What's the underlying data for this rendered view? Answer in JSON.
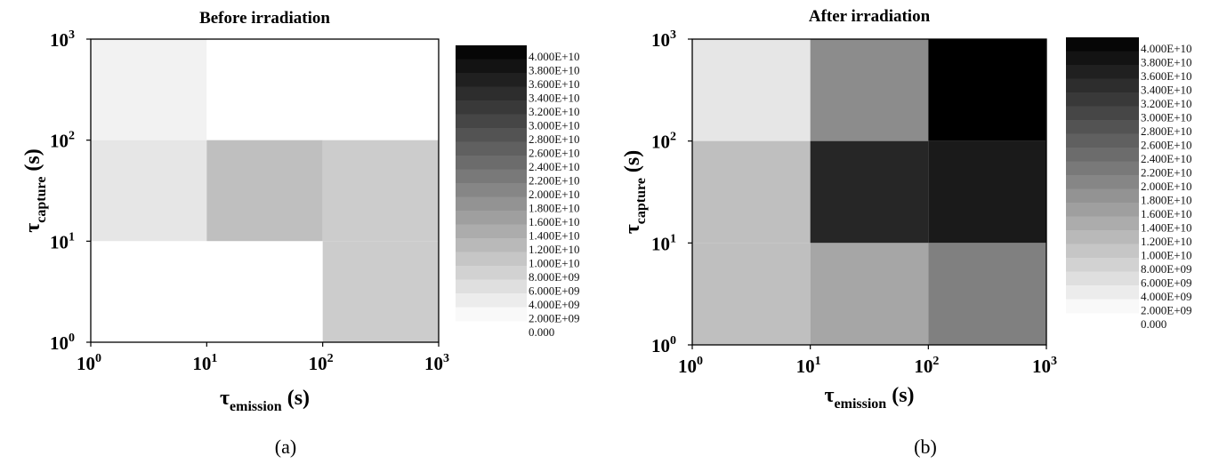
{
  "chart_data": [
    {
      "type": "heatmap",
      "title": "Before irradiation",
      "caption": "(a)",
      "xlabel": {
        "symbol": "τ",
        "subscript": "emission",
        "unit": "(s)"
      },
      "ylabel": {
        "symbol": "τ",
        "subscript": "capture",
        "unit": "(s)"
      },
      "x_scale": "log",
      "y_scale": "log",
      "xlim": [
        1,
        1000
      ],
      "ylim": [
        1,
        1000
      ],
      "x_ticks": [
        {
          "base": "10",
          "exp": "0"
        },
        {
          "base": "10",
          "exp": "1"
        },
        {
          "base": "10",
          "exp": "2"
        },
        {
          "base": "10",
          "exp": "3"
        }
      ],
      "y_ticks": [
        {
          "base": "10",
          "exp": "0"
        },
        {
          "base": "10",
          "exp": "1"
        },
        {
          "base": "10",
          "exp": "2"
        },
        {
          "base": "10",
          "exp": "3"
        }
      ],
      "cells": [
        {
          "x": [
            1,
            10
          ],
          "y": [
            100,
            1000
          ],
          "value": 2000000000
        },
        {
          "x": [
            10,
            100
          ],
          "y": [
            100,
            1000
          ],
          "value": 0
        },
        {
          "x": [
            100,
            1000
          ],
          "y": [
            100,
            1000
          ],
          "value": 0
        },
        {
          "x": [
            1,
            10
          ],
          "y": [
            10,
            100
          ],
          "value": 4000000000
        },
        {
          "x": [
            10,
            100
          ],
          "y": [
            10,
            100
          ],
          "value": 10000000000
        },
        {
          "x": [
            100,
            1000
          ],
          "y": [
            10,
            100
          ],
          "value": 8000000000
        },
        {
          "x": [
            1,
            10
          ],
          "y": [
            1,
            10
          ],
          "value": 0
        },
        {
          "x": [
            10,
            100
          ],
          "y": [
            1,
            10
          ],
          "value": 0
        },
        {
          "x": [
            100,
            1000
          ],
          "y": [
            1,
            10
          ],
          "value": 8000000000
        }
      ],
      "colorbar": {
        "labels": [
          "4.000E+10",
          "3.800E+10",
          "3.600E+10",
          "3.400E+10",
          "3.200E+10",
          "3.000E+10",
          "2.800E+10",
          "2.600E+10",
          "2.400E+10",
          "2.200E+10",
          "2.000E+10",
          "1.800E+10",
          "1.600E+10",
          "1.400E+10",
          "1.200E+10",
          "1.000E+10",
          "8.000E+09",
          "6.000E+09",
          "4.000E+09",
          "2.000E+09",
          "0.000"
        ],
        "range": [
          0,
          40000000000
        ],
        "colormap": "white-to-black"
      }
    },
    {
      "type": "heatmap",
      "title": "After irradiation",
      "caption": "(b)",
      "xlabel": {
        "symbol": "τ",
        "subscript": "emission",
        "unit": "(s)"
      },
      "ylabel": {
        "symbol": "τ",
        "subscript": "capture",
        "unit": "(s)"
      },
      "x_scale": "log",
      "y_scale": "log",
      "xlim": [
        1,
        1000
      ],
      "ylim": [
        1,
        1000
      ],
      "x_ticks": [
        {
          "base": "10",
          "exp": "0"
        },
        {
          "base": "10",
          "exp": "1"
        },
        {
          "base": "10",
          "exp": "2"
        },
        {
          "base": "10",
          "exp": "3"
        }
      ],
      "y_ticks": [
        {
          "base": "10",
          "exp": "0"
        },
        {
          "base": "10",
          "exp": "1"
        },
        {
          "base": "10",
          "exp": "2"
        },
        {
          "base": "10",
          "exp": "3"
        }
      ],
      "cells": [
        {
          "x": [
            1,
            10
          ],
          "y": [
            100,
            1000
          ],
          "value": 4000000000
        },
        {
          "x": [
            10,
            100
          ],
          "y": [
            100,
            1000
          ],
          "value": 18000000000
        },
        {
          "x": [
            100,
            1000
          ],
          "y": [
            100,
            1000
          ],
          "value": 40000000000
        },
        {
          "x": [
            1,
            10
          ],
          "y": [
            10,
            100
          ],
          "value": 10000000000
        },
        {
          "x": [
            10,
            100
          ],
          "y": [
            10,
            100
          ],
          "value": 34000000000
        },
        {
          "x": [
            100,
            1000
          ],
          "y": [
            10,
            100
          ],
          "value": 36000000000
        },
        {
          "x": [
            1,
            10
          ],
          "y": [
            1,
            10
          ],
          "value": 10000000000
        },
        {
          "x": [
            10,
            100
          ],
          "y": [
            1,
            10
          ],
          "value": 14000000000
        },
        {
          "x": [
            100,
            1000
          ],
          "y": [
            1,
            10
          ],
          "value": 20000000000
        }
      ],
      "colorbar": {
        "labels": [
          "4.000E+10",
          "3.800E+10",
          "3.600E+10",
          "3.400E+10",
          "3.200E+10",
          "3.000E+10",
          "2.800E+10",
          "2.600E+10",
          "2.400E+10",
          "2.200E+10",
          "2.000E+10",
          "1.800E+10",
          "1.600E+10",
          "1.400E+10",
          "1.200E+10",
          "1.000E+10",
          "8.000E+09",
          "6.000E+09",
          "4.000E+09",
          "2.000E+09",
          "0.000"
        ],
        "range": [
          0,
          40000000000
        ],
        "colormap": "white-to-black"
      }
    }
  ]
}
